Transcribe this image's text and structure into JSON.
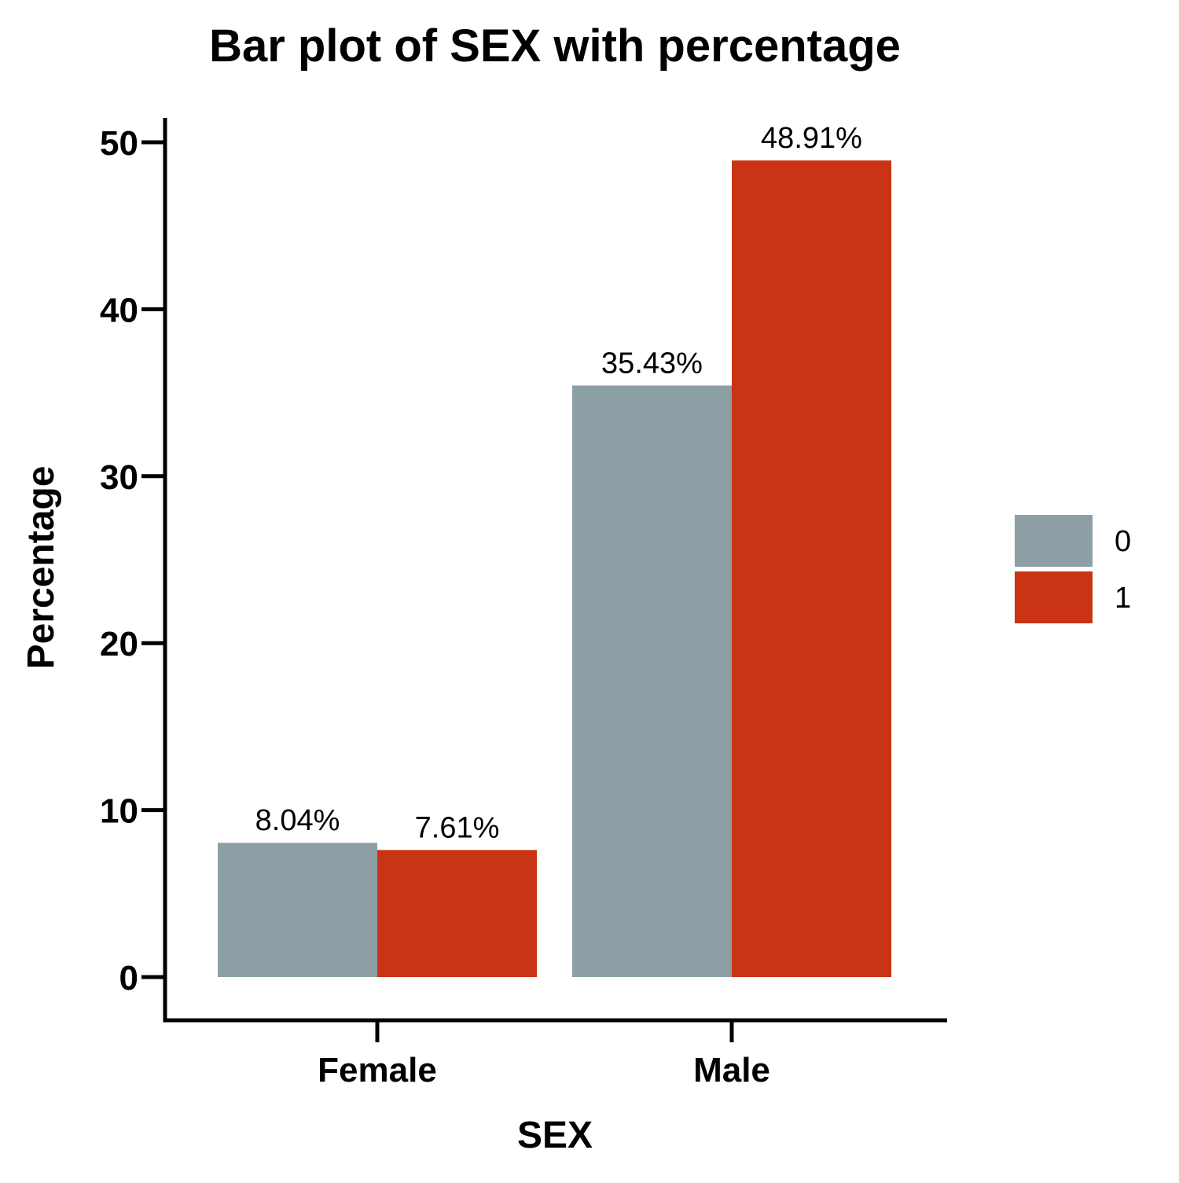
{
  "chart_data": {
    "type": "bar",
    "title": "Bar plot of SEX with percentage",
    "xlabel": "SEX",
    "ylabel": "Percentage",
    "categories": [
      "Female",
      "Male"
    ],
    "series": [
      {
        "name": "0",
        "values": [
          8.04,
          35.43
        ],
        "labels": [
          "8.04%",
          "35.43%"
        ],
        "color": "#8c9fa5"
      },
      {
        "name": "1",
        "values": [
          7.61,
          48.91
        ],
        "labels": [
          "7.61%",
          "48.91%"
        ],
        "color": "#c93414"
      }
    ],
    "yticks": [
      0,
      10,
      20,
      30,
      40,
      50
    ],
    "ylim": [
      -2.6,
      51.6
    ],
    "grid": false,
    "legend_position": "right"
  }
}
